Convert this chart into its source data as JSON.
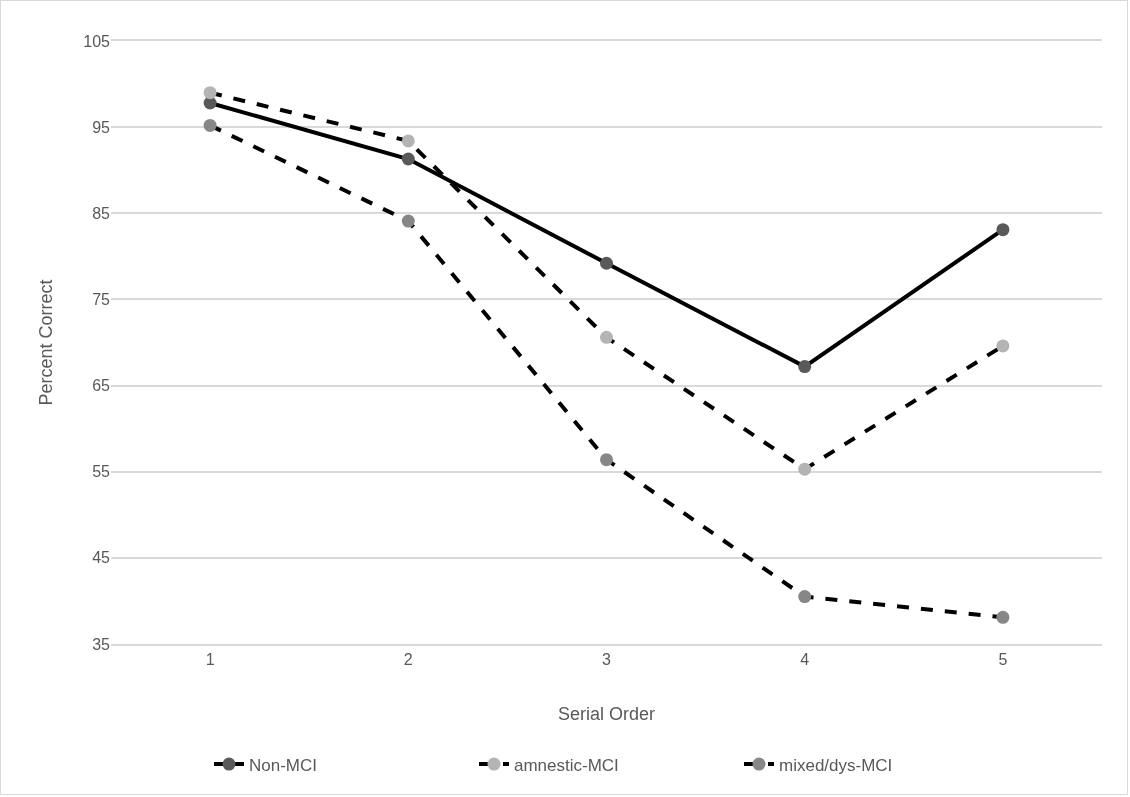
{
  "chart_data": {
    "type": "line",
    "xlabel": "Serial Order",
    "ylabel": "Percent Correct",
    "categories": [
      "1",
      "2",
      "3",
      "4",
      "5"
    ],
    "series": [
      {
        "name": "Non-MCI",
        "color": "#595959",
        "line_style": "solid",
        "values": [
          97.8,
          91.3,
          79.2,
          67.2,
          83.1
        ]
      },
      {
        "name": "amnestic-MCI",
        "color": "#b4b4b4",
        "line_style": "dashed",
        "values": [
          99.0,
          93.4,
          70.6,
          55.3,
          69.6
        ]
      },
      {
        "name": "mixed/dys-MCI",
        "color": "#878787",
        "line_style": "dashed",
        "values": [
          95.2,
          84.1,
          56.4,
          40.5,
          38.1
        ]
      }
    ],
    "ylim": [
      35,
      105
    ],
    "yticks": [
      35,
      45,
      55,
      65,
      75,
      85,
      95,
      105
    ],
    "grid": "y",
    "legend": "bottom",
    "marker": "circle"
  }
}
